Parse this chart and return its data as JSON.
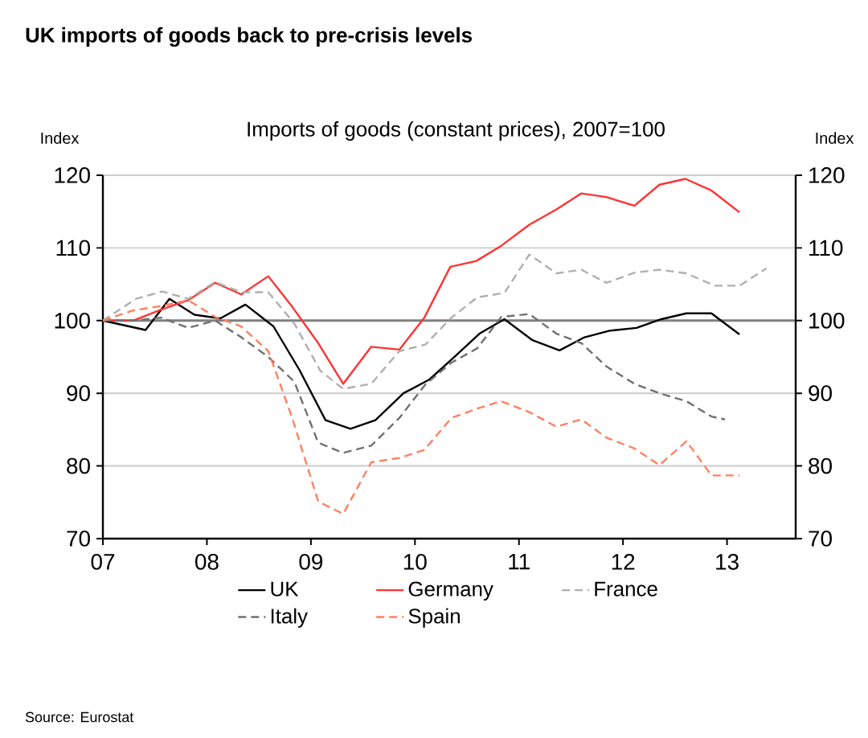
{
  "chart_data": {
    "type": "line",
    "title": "UK imports of goods back to pre-crisis levels",
    "subtitle": "Imports of goods (constant prices), 2007=100",
    "ylabel": "Index",
    "y2label": "Index",
    "annotations": [
      "Source: Eurostat"
    ],
    "xlim": [
      2007,
      2013.66
    ],
    "xticks": [
      {
        "value": 2007,
        "label": "07"
      },
      {
        "value": 2008,
        "label": "08"
      },
      {
        "value": 2009,
        "label": "09"
      },
      {
        "value": 2010,
        "label": "10"
      },
      {
        "value": 2011,
        "label": "11"
      },
      {
        "value": 2012,
        "label": "12"
      },
      {
        "value": 2013,
        "label": "13"
      }
    ],
    "ylim": [
      70,
      120
    ],
    "yticks": [
      70,
      80,
      90,
      100,
      110,
      120
    ],
    "y2lim": [
      70,
      120
    ],
    "y2ticks": [
      70,
      80,
      90,
      100,
      110,
      120
    ],
    "grid": "y",
    "legend": "bottom",
    "ref_lines": [
      {
        "axis": "y",
        "value": 100,
        "color": "#808080"
      }
    ],
    "series": [
      {
        "name": "UK",
        "color": "#000000",
        "line_style": "solid",
        "x": [
          2007,
          2007.41,
          2007.64,
          2007.88,
          2008.13,
          2008.37,
          2008.64,
          2008.89,
          2009.14,
          2009.38,
          2009.62,
          2009.89,
          2010.14,
          2010.38,
          2010.62,
          2010.86,
          2011.13,
          2011.39,
          2011.63,
          2011.87,
          2012.13,
          2012.37,
          2012.61,
          2012.85,
          2013.12
        ],
        "values": [
          100,
          98.7,
          103.0,
          100.8,
          100.3,
          102.2,
          99.2,
          93.2,
          86.3,
          85.1,
          86.3,
          90.0,
          91.9,
          95.0,
          98.2,
          100.2,
          97.3,
          95.9,
          97.7,
          98.6,
          99.0,
          100.2,
          101.0,
          101.0,
          98.1
        ]
      },
      {
        "name": "Germany",
        "color": "#ff3333",
        "line_style": "solid",
        "x": [
          2007,
          2007.29,
          2007.56,
          2007.82,
          2008.08,
          2008.33,
          2008.59,
          2008.82,
          2009.07,
          2009.31,
          2009.58,
          2009.85,
          2010.09,
          2010.34,
          2010.59,
          2010.83,
          2011.1,
          2011.36,
          2011.6,
          2011.84,
          2012.11,
          2012.35,
          2012.6,
          2012.85,
          2013.12
        ],
        "values": [
          100,
          100,
          101.5,
          102.8,
          105.2,
          103.6,
          106.1,
          101.9,
          96.9,
          91.3,
          96.4,
          96.0,
          100.4,
          107.4,
          108.2,
          110.3,
          113.2,
          115.3,
          117.5,
          117.0,
          115.8,
          118.7,
          119.5,
          117.9,
          114.9
        ]
      },
      {
        "name": "France",
        "color": "#b0b0b0",
        "line_style": "dashed",
        "x": [
          2007,
          2007.32,
          2007.57,
          2007.82,
          2008.08,
          2008.33,
          2008.59,
          2008.84,
          2009.09,
          2009.31,
          2009.58,
          2009.85,
          2010.1,
          2010.35,
          2010.6,
          2010.86,
          2011.1,
          2011.36,
          2011.6,
          2011.84,
          2012.11,
          2012.35,
          2012.61,
          2012.88,
          2013.12,
          2013.38
        ],
        "values": [
          100,
          103.0,
          104.0,
          103.0,
          105.3,
          103.9,
          103.9,
          99.6,
          93.1,
          90.6,
          91.3,
          95.8,
          96.7,
          100.4,
          103.2,
          103.8,
          109.1,
          106.5,
          107.0,
          105.2,
          106.6,
          107.0,
          106.5,
          104.8,
          104.8,
          107.2
        ]
      },
      {
        "name": "Italy",
        "color": "#707070",
        "line_style": "dashed",
        "x": [
          2007,
          2007.29,
          2007.56,
          2007.82,
          2008.08,
          2008.33,
          2008.59,
          2008.84,
          2009.07,
          2009.31,
          2009.58,
          2009.85,
          2010.1,
          2010.35,
          2010.6,
          2010.83,
          2011.1,
          2011.36,
          2011.6,
          2011.84,
          2012.11,
          2012.35,
          2012.61,
          2012.85,
          2012.98
        ],
        "values": [
          100,
          100,
          100.4,
          99.0,
          100.0,
          97.7,
          95.0,
          91.6,
          83.2,
          81.8,
          82.8,
          86.6,
          91.2,
          94.2,
          96.2,
          100.5,
          100.9,
          98.2,
          96.9,
          93.7,
          91.3,
          90.0,
          88.9,
          86.8,
          86.4
        ]
      },
      {
        "name": "Spain",
        "color": "#ff8060",
        "line_style": "dashed",
        "x": [
          2007,
          2007.29,
          2007.56,
          2007.82,
          2008.08,
          2008.33,
          2008.59,
          2008.82,
          2009.07,
          2009.31,
          2009.58,
          2009.85,
          2010.09,
          2010.35,
          2010.6,
          2010.83,
          2011.1,
          2011.36,
          2011.6,
          2011.84,
          2012.11,
          2012.35,
          2012.61,
          2012.85,
          2013.12
        ],
        "values": [
          100,
          101.4,
          102.0,
          102.8,
          100.5,
          99.2,
          95.8,
          86.6,
          75.1,
          73.4,
          80.5,
          81.1,
          82.2,
          86.6,
          87.9,
          88.9,
          87.4,
          85.4,
          86.4,
          83.9,
          82.4,
          80.1,
          83.4,
          78.7,
          78.7
        ]
      }
    ]
  }
}
